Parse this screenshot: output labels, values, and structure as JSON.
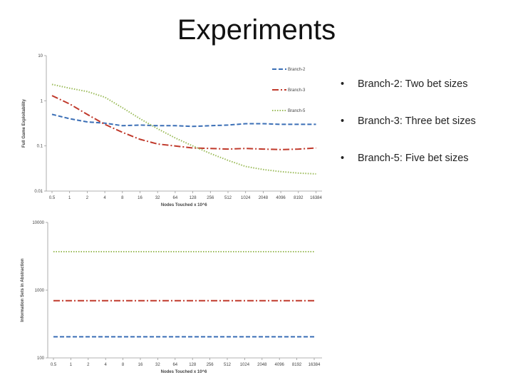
{
  "slide": {
    "title": "Experiments",
    "bullets": [
      {
        "marker": "•",
        "text": "Branch-2: Two bet sizes"
      },
      {
        "marker": "•",
        "text": "Branch-3: Three bet sizes"
      },
      {
        "marker": "•",
        "text": "Branch-5: Five bet sizes"
      }
    ]
  },
  "chart_data": [
    {
      "type": "line",
      "xlabel": "Nodes Touched x 10^6",
      "ylabel": "Full Game Exploitability",
      "y_scale": "log",
      "ylim": [
        0.01,
        10
      ],
      "y_ticks": [
        "10",
        "1",
        "0.1",
        "0.01"
      ],
      "categories": [
        "0.5",
        "1",
        "2",
        "4",
        "8",
        "16",
        "32",
        "64",
        "128",
        "256",
        "512",
        "1024",
        "2048",
        "4096",
        "8192",
        "16384"
      ],
      "legend_position": "top-right",
      "series": [
        {
          "name": "Branch-2",
          "color": "#3b6fb6",
          "dash": "dashed",
          "values": [
            0.5,
            0.4,
            0.34,
            0.32,
            0.28,
            0.29,
            0.28,
            0.28,
            0.27,
            0.28,
            0.29,
            0.31,
            0.31,
            0.3,
            0.3,
            0.3
          ]
        },
        {
          "name": "Branch-3",
          "color": "#c0392b",
          "dash": "dash-dot",
          "values": [
            1.3,
            0.85,
            0.5,
            0.3,
            0.2,
            0.14,
            0.11,
            0.1,
            0.09,
            0.088,
            0.085,
            0.088,
            0.085,
            0.083,
            0.085,
            0.09
          ]
        },
        {
          "name": "Branch-5",
          "color": "#9bbb59",
          "dash": "dotted",
          "values": [
            2.3,
            1.9,
            1.6,
            1.2,
            0.7,
            0.4,
            0.24,
            0.15,
            0.1,
            0.068,
            0.048,
            0.035,
            0.03,
            0.027,
            0.025,
            0.024
          ]
        }
      ]
    },
    {
      "type": "line",
      "xlabel": "Nodes Touched x 10^6",
      "ylabel": "Information Sets in Abstraction",
      "y_scale": "log",
      "ylim": [
        100,
        10000
      ],
      "y_ticks": [
        "10000",
        "1000",
        "100"
      ],
      "categories": [
        "0.5",
        "1",
        "2",
        "4",
        "8",
        "16",
        "32",
        "64",
        "128",
        "256",
        "512",
        "1024",
        "2048",
        "4096",
        "8192",
        "16384"
      ],
      "series": [
        {
          "name": "Branch-2",
          "color": "#3b6fb6",
          "dash": "dashed",
          "values": [
            205,
            205,
            205,
            205,
            205,
            205,
            205,
            205,
            205,
            205,
            205,
            205,
            205,
            205,
            205,
            205
          ]
        },
        {
          "name": "Branch-3",
          "color": "#c0392b",
          "dash": "dash-dot",
          "values": [
            700,
            700,
            700,
            700,
            700,
            700,
            700,
            700,
            700,
            700,
            700,
            700,
            700,
            700,
            700,
            700
          ]
        },
        {
          "name": "Branch-5",
          "color": "#9bbb59",
          "dash": "dotted",
          "values": [
            3700,
            3700,
            3700,
            3700,
            3700,
            3700,
            3700,
            3700,
            3700,
            3700,
            3700,
            3700,
            3700,
            3700,
            3700,
            3700
          ]
        }
      ]
    }
  ]
}
